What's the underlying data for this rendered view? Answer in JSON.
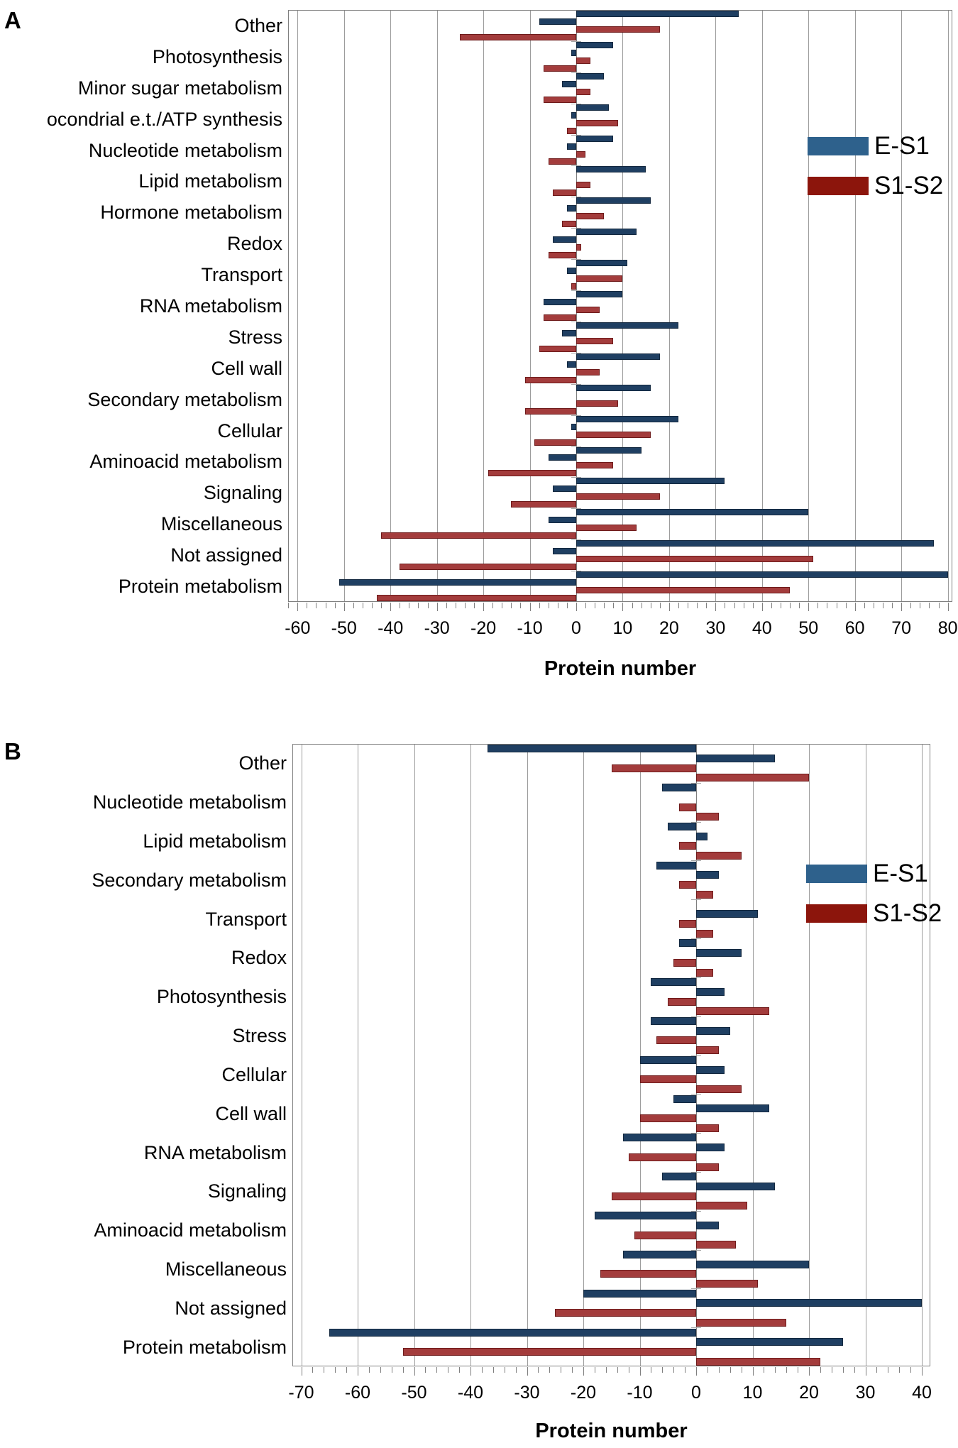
{
  "figure_title": "",
  "colors": {
    "e_s1_bar": "#1f3f62",
    "e_s1_bar_border": "#13283f",
    "s1_s2_bar": "#a33c3c",
    "s1_s2_bar_border": "#6e1b1b",
    "legend_e_s1": "#2e618c",
    "legend_s1_s2": "#8c150c",
    "gridline": "#9c9c9c",
    "axis": "#7f7f7f",
    "category_tick": "#a6a6a6",
    "text": "#000000"
  },
  "chart_data": [
    {
      "panel_label": "A",
      "type": "bar",
      "orientation": "horizontal",
      "xlabel": "Protein number",
      "xlim": [
        -60,
        80
      ],
      "xticks": [
        -60,
        -50,
        -40,
        -30,
        -20,
        -10,
        0,
        10,
        20,
        30,
        40,
        50,
        60,
        70,
        80
      ],
      "grid": "vertical gridlines every 10",
      "legend": [
        "E-S1",
        "S1-S2"
      ],
      "legend_position": "upper-right",
      "row_series": [
        "E-S1",
        "E-S1",
        "S1-S2",
        "S1-S2"
      ],
      "row_direction": [
        "positive",
        "negative",
        "positive",
        "negative"
      ],
      "categories": [
        {
          "label": "Other",
          "values": [
            35,
            -8,
            18,
            -25
          ]
        },
        {
          "label": "Photosynthesis",
          "values": [
            8,
            -1,
            3,
            -7
          ]
        },
        {
          "label": "Minor sugar metabolism",
          "values": [
            6,
            -3,
            3,
            -7
          ]
        },
        {
          "label": "ocondrial e.t./ATP synthesis",
          "values": [
            7,
            -1,
            9,
            -2
          ]
        },
        {
          "label": "Nucleotide metabolism",
          "values": [
            8,
            -2,
            2,
            -6
          ]
        },
        {
          "label": "Lipid metabolism",
          "values": [
            15,
            0,
            3,
            -5
          ]
        },
        {
          "label": "Hormone metabolism",
          "values": [
            16,
            -2,
            6,
            -3
          ]
        },
        {
          "label": "Redox",
          "values": [
            13,
            -5,
            1,
            -6
          ]
        },
        {
          "label": "Transport",
          "values": [
            11,
            -2,
            10,
            -1
          ]
        },
        {
          "label": "RNA metabolism",
          "values": [
            10,
            -7,
            5,
            -7
          ]
        },
        {
          "label": "Stress",
          "values": [
            22,
            -3,
            8,
            -8
          ]
        },
        {
          "label": "Cell wall",
          "values": [
            18,
            -2,
            5,
            -11
          ]
        },
        {
          "label": "Secondary metabolism",
          "values": [
            16,
            0,
            9,
            -11
          ]
        },
        {
          "label": "Cellular",
          "values": [
            22,
            -1,
            16,
            -9
          ]
        },
        {
          "label": "Aminoacid metabolism",
          "values": [
            14,
            -6,
            8,
            -19
          ]
        },
        {
          "label": "Signaling",
          "values": [
            32,
            -5,
            18,
            -14
          ]
        },
        {
          "label": "Miscellaneous",
          "values": [
            50,
            -6,
            13,
            -42
          ]
        },
        {
          "label": "Not assigned",
          "values": [
            77,
            -5,
            51,
            -38
          ]
        },
        {
          "label": "Protein metabolism",
          "values": [
            80,
            -51,
            46,
            -43
          ]
        }
      ]
    },
    {
      "panel_label": "B",
      "type": "bar",
      "orientation": "horizontal",
      "xlabel": "Protein number",
      "xlim": [
        -70,
        40
      ],
      "xticks": [
        -70,
        -60,
        -50,
        -40,
        -30,
        -20,
        -10,
        0,
        10,
        20,
        30,
        40
      ],
      "grid": "vertical gridlines every 10",
      "legend": [
        "E-S1",
        "S1-S2"
      ],
      "legend_position": "upper-right",
      "row_series": [
        "E-S1",
        "E-S1",
        "S1-S2",
        "S1-S2"
      ],
      "row_direction": [
        "negative",
        "positive",
        "negative",
        "positive"
      ],
      "categories": [
        {
          "label": "Other",
          "values": [
            -37,
            14,
            -15,
            20
          ]
        },
        {
          "label": "Nucleotide metabolism",
          "values": [
            -6,
            0,
            -3,
            4
          ]
        },
        {
          "label": "Lipid metabolism",
          "values": [
            -5,
            2,
            -3,
            8
          ]
        },
        {
          "label": "Secondary metabolism",
          "values": [
            -7,
            4,
            -3,
            3
          ]
        },
        {
          "label": "Transport",
          "values": [
            0,
            11,
            -3,
            3
          ]
        },
        {
          "label": "Redox",
          "values": [
            -3,
            8,
            -4,
            3
          ]
        },
        {
          "label": "Photosynthesis",
          "values": [
            -8,
            5,
            -5,
            13
          ]
        },
        {
          "label": "Stress",
          "values": [
            -8,
            6,
            -7,
            4
          ]
        },
        {
          "label": "Cellular",
          "values": [
            -10,
            5,
            -10,
            8
          ]
        },
        {
          "label": "Cell wall",
          "values": [
            -4,
            13,
            -10,
            4
          ]
        },
        {
          "label": "RNA metabolism",
          "values": [
            -13,
            5,
            -12,
            4
          ]
        },
        {
          "label": "Signaling",
          "values": [
            -6,
            14,
            -15,
            9
          ]
        },
        {
          "label": "Aminoacid metabolism",
          "values": [
            -18,
            4,
            -11,
            7
          ]
        },
        {
          "label": "Miscellaneous",
          "values": [
            -13,
            20,
            -17,
            11
          ]
        },
        {
          "label": "Not assigned",
          "values": [
            -20,
            40,
            -25,
            16
          ]
        },
        {
          "label": "Protein metabolism",
          "values": [
            -65,
            26,
            -52,
            22
          ]
        }
      ]
    }
  ]
}
